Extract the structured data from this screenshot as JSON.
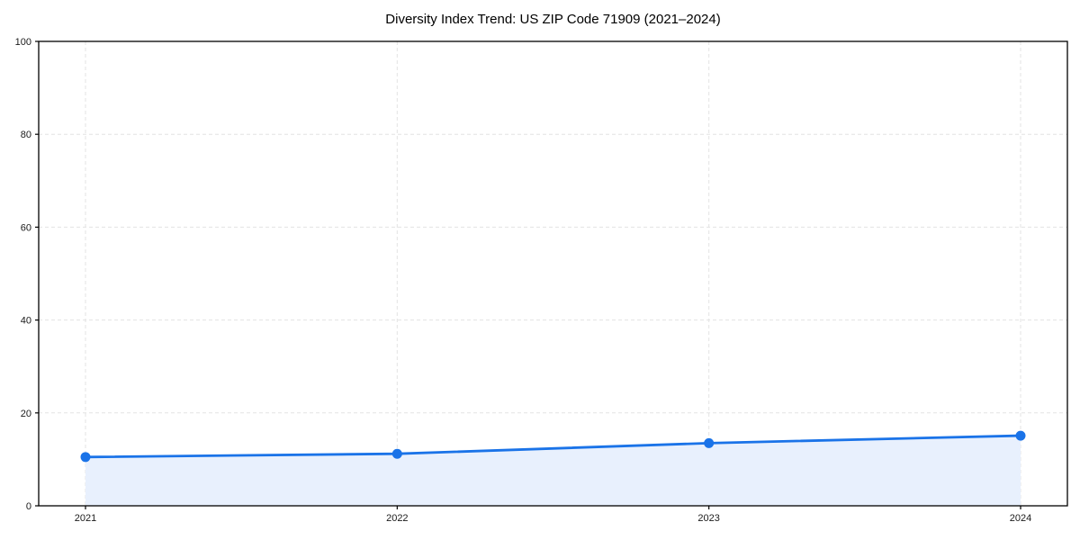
{
  "chart_data": {
    "type": "line",
    "title": "Diversity Index Trend: US ZIP Code 71909 (2021–2024)",
    "series_name": "Diversity Index",
    "x": [
      2021,
      2022,
      2023,
      2024
    ],
    "categories": [
      "2021",
      "2022",
      "2023",
      "2024"
    ],
    "values": [
      10.5,
      11.2,
      13.5,
      15.1
    ],
    "xlabel": "",
    "ylabel": "",
    "ylim": [
      0,
      100
    ],
    "yticks": [
      0,
      20,
      40,
      60,
      80,
      100
    ],
    "ytick_labels": [
      "0",
      "20",
      "40",
      "60",
      "80",
      "100"
    ],
    "grid": true,
    "grid_style": "dashed",
    "legend_position": "none",
    "marker": "circle",
    "area_fill": true,
    "colors": {
      "line": "#1a73e8",
      "marker": "#1a73e8",
      "area": "#e8f0fd",
      "grid": "#e3e3e3",
      "spine": "#000000",
      "tick_label": "#1a1a1a",
      "title": "#000000",
      "background": "#ffffff"
    }
  }
}
